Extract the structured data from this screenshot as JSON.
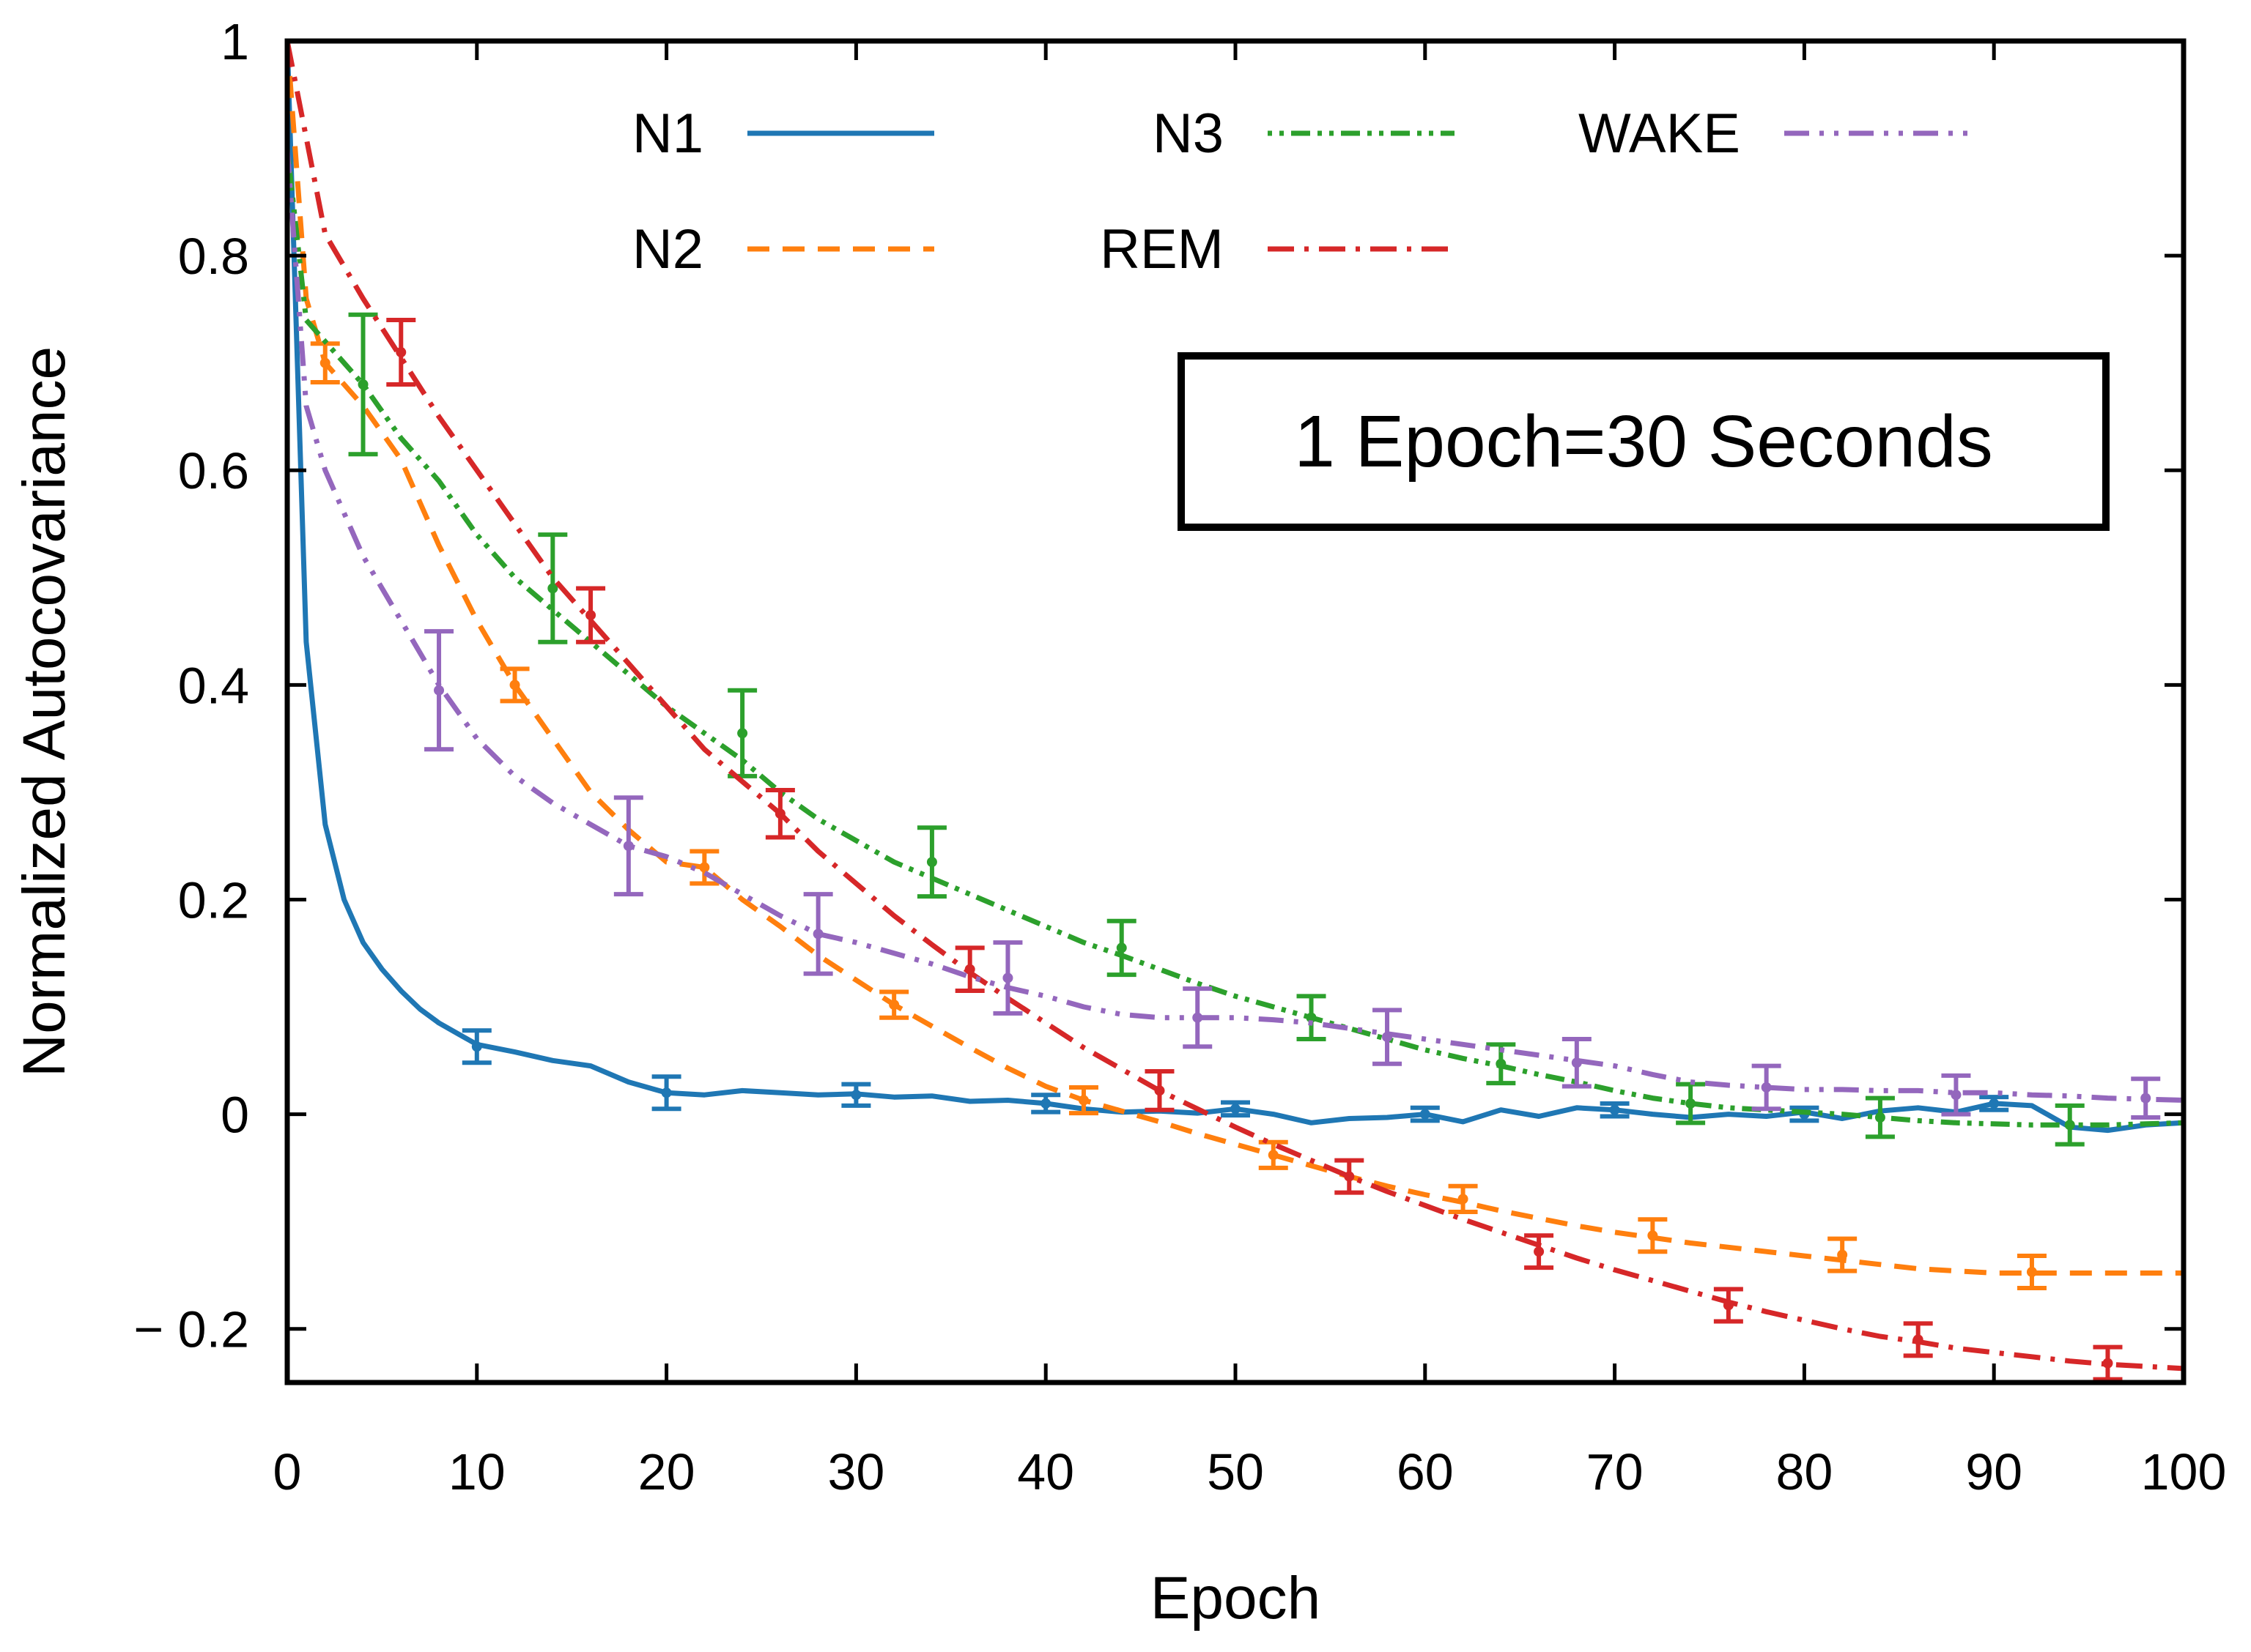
{
  "chart_data": {
    "type": "line",
    "title": "",
    "xlabel": "Epoch",
    "ylabel": "Normalized Autocovariance",
    "xlim": [
      0,
      100
    ],
    "ylim": [
      -0.25,
      1.0
    ],
    "xticks": [
      0,
      10,
      20,
      30,
      40,
      50,
      60,
      70,
      80,
      90,
      100
    ],
    "xtick_labels": [
      "0",
      "10",
      "20",
      "30",
      "40",
      "50",
      "60",
      "70",
      "80",
      "90",
      "100"
    ],
    "yticks": [
      -0.2,
      0,
      0.2,
      0.4,
      0.6,
      0.8,
      1.0
    ],
    "ytick_labels": [
      "− 0.2",
      "0",
      "0.2",
      "0.4",
      "0.6",
      "0.8",
      "1"
    ],
    "annotation": "1 Epoch=30 Seconds",
    "legend_position": "top",
    "series": [
      {
        "name": "N1",
        "color": "#1f77b4",
        "style": "solid",
        "x": [
          0,
          1,
          2,
          3,
          4,
          5,
          6,
          7,
          8,
          9,
          10,
          12,
          14,
          16,
          18,
          20,
          22,
          24,
          26,
          28,
          30,
          32,
          34,
          36,
          38,
          40,
          42,
          44,
          46,
          48,
          50,
          52,
          54,
          56,
          58,
          60,
          62,
          64,
          66,
          68,
          70,
          72,
          74,
          76,
          78,
          80,
          82,
          84,
          86,
          88,
          90,
          92,
          94,
          96,
          98,
          100
        ],
        "y": [
          1.0,
          0.44,
          0.27,
          0.2,
          0.16,
          0.135,
          0.115,
          0.098,
          0.085,
          0.075,
          0.065,
          0.058,
          0.05,
          0.045,
          0.03,
          0.02,
          0.018,
          0.022,
          0.02,
          0.018,
          0.019,
          0.016,
          0.017,
          0.012,
          0.013,
          0.01,
          0.005,
          0.002,
          0.003,
          0.001,
          0.005,
          0.0,
          -0.008,
          -0.004,
          -0.003,
          0.0,
          -0.007,
          0.004,
          -0.002,
          0.006,
          0.004,
          0.0,
          -0.003,
          0.0,
          -0.002,
          0.002,
          -0.004,
          0.003,
          0.006,
          0.002,
          0.01,
          0.008,
          -0.012,
          -0.015,
          -0.01,
          -0.008
        ],
        "error_x": [
          10,
          20,
          30,
          40,
          50,
          60,
          70,
          80,
          90
        ],
        "error_y": [
          0.063,
          0.02,
          0.018,
          0.01,
          0.005,
          0.0,
          0.004,
          0.0,
          0.01
        ],
        "error_e": [
          0.015,
          0.015,
          0.01,
          0.008,
          0.006,
          0.006,
          0.006,
          0.006,
          0.006
        ]
      },
      {
        "name": "N2",
        "color": "#ff7f0e",
        "style": "dashed",
        "x": [
          0,
          1,
          2,
          4,
          6,
          8,
          10,
          12,
          14,
          16,
          18,
          20,
          22,
          24,
          26,
          28,
          30,
          32,
          34,
          36,
          38,
          40,
          42,
          44,
          46,
          48,
          50,
          52,
          54,
          56,
          58,
          60,
          62,
          64,
          66,
          68,
          70,
          72,
          74,
          76,
          78,
          80,
          82,
          84,
          86,
          88,
          90,
          92,
          94,
          96,
          98,
          100
        ],
        "y": [
          1.0,
          0.76,
          0.7,
          0.66,
          0.61,
          0.53,
          0.46,
          0.4,
          0.35,
          0.3,
          0.265,
          0.235,
          0.23,
          0.2,
          0.175,
          0.148,
          0.125,
          0.102,
          0.082,
          0.062,
          0.043,
          0.026,
          0.013,
          0.003,
          -0.007,
          -0.018,
          -0.028,
          -0.038,
          -0.048,
          -0.058,
          -0.067,
          -0.075,
          -0.082,
          -0.09,
          -0.097,
          -0.104,
          -0.11,
          -0.115,
          -0.12,
          -0.124,
          -0.128,
          -0.132,
          -0.136,
          -0.14,
          -0.144,
          -0.146,
          -0.148,
          -0.148,
          -0.148,
          -0.148,
          -0.148,
          -0.148
        ],
        "error_x": [
          2,
          12,
          22,
          32,
          42,
          52,
          62,
          72,
          82,
          92
        ],
        "error_y": [
          0.7,
          0.4,
          0.23,
          0.102,
          0.013,
          -0.038,
          -0.079,
          -0.113,
          -0.131,
          -0.147
        ],
        "error_e": [
          0.018,
          0.015,
          0.015,
          0.012,
          0.012,
          0.012,
          0.012,
          0.015,
          0.015,
          0.015
        ]
      },
      {
        "name": "N3",
        "color": "#2ca02c",
        "style": "dotdotdash",
        "x": [
          0,
          1,
          2,
          4,
          6,
          8,
          10,
          12,
          14,
          16,
          18,
          20,
          22,
          24,
          26,
          28,
          30,
          32,
          34,
          36,
          38,
          40,
          42,
          44,
          46,
          48,
          50,
          52,
          54,
          56,
          58,
          60,
          62,
          64,
          66,
          68,
          70,
          72,
          74,
          76,
          78,
          80,
          82,
          84,
          86,
          88,
          90,
          92,
          94,
          96,
          98,
          100
        ],
        "y": [
          0.9,
          0.74,
          0.72,
          0.68,
          0.63,
          0.59,
          0.54,
          0.5,
          0.47,
          0.44,
          0.41,
          0.38,
          0.355,
          0.33,
          0.3,
          0.275,
          0.255,
          0.235,
          0.22,
          0.205,
          0.19,
          0.175,
          0.16,
          0.148,
          0.135,
          0.122,
          0.11,
          0.1,
          0.09,
          0.08,
          0.07,
          0.06,
          0.052,
          0.045,
          0.037,
          0.03,
          0.022,
          0.015,
          0.01,
          0.006,
          0.004,
          0.002,
          0.0,
          -0.003,
          -0.006,
          -0.008,
          -0.009,
          -0.01,
          -0.01,
          -0.01,
          -0.009,
          -0.008
        ],
        "error_x": [
          4,
          14,
          24,
          34,
          44,
          54,
          64,
          74,
          84,
          94
        ],
        "error_y": [
          0.68,
          0.49,
          0.355,
          0.235,
          0.155,
          0.09,
          0.047,
          0.01,
          -0.003,
          -0.01
        ],
        "error_e": [
          0.065,
          0.05,
          0.04,
          0.032,
          0.025,
          0.02,
          0.018,
          0.018,
          0.018,
          0.018
        ]
      },
      {
        "name": "REM",
        "color": "#d62728",
        "style": "dashdot",
        "x": [
          0,
          2,
          4,
          6,
          8,
          10,
          12,
          14,
          16,
          18,
          20,
          22,
          24,
          26,
          28,
          30,
          32,
          34,
          36,
          38,
          40,
          42,
          44,
          46,
          48,
          50,
          52,
          54,
          56,
          58,
          60,
          62,
          64,
          66,
          68,
          70,
          72,
          74,
          76,
          78,
          80,
          82,
          84,
          86,
          88,
          90,
          92,
          94,
          96,
          98,
          100
        ],
        "y": [
          1.0,
          0.82,
          0.76,
          0.705,
          0.65,
          0.6,
          0.55,
          0.5,
          0.46,
          0.42,
          0.38,
          0.34,
          0.31,
          0.28,
          0.245,
          0.215,
          0.185,
          0.158,
          0.132,
          0.108,
          0.085,
          0.062,
          0.042,
          0.022,
          0.005,
          -0.012,
          -0.028,
          -0.043,
          -0.058,
          -0.072,
          -0.085,
          -0.098,
          -0.11,
          -0.122,
          -0.134,
          -0.145,
          -0.155,
          -0.165,
          -0.175,
          -0.184,
          -0.192,
          -0.2,
          -0.207,
          -0.212,
          -0.218,
          -0.222,
          -0.226,
          -0.23,
          -0.233,
          -0.235,
          -0.237
        ],
        "error_x": [
          6,
          16,
          26,
          36,
          46,
          56,
          66,
          76,
          86,
          96
        ],
        "error_y": [
          0.71,
          0.465,
          0.28,
          0.135,
          0.022,
          -0.058,
          -0.128,
          -0.178,
          -0.21,
          -0.232
        ],
        "error_e": [
          0.03,
          0.025,
          0.022,
          0.02,
          0.018,
          0.015,
          0.015,
          0.015,
          0.015,
          0.015
        ]
      },
      {
        "name": "WAKE",
        "color": "#9467bd",
        "style": "dashdotdot",
        "x": [
          0,
          1,
          2,
          4,
          6,
          8,
          10,
          12,
          14,
          16,
          18,
          20,
          22,
          24,
          26,
          28,
          30,
          32,
          34,
          36,
          38,
          40,
          42,
          44,
          46,
          48,
          50,
          52,
          54,
          56,
          58,
          60,
          62,
          64,
          66,
          68,
          70,
          72,
          74,
          76,
          78,
          80,
          82,
          84,
          86,
          88,
          90,
          92,
          94,
          96,
          98,
          100
        ],
        "y": [
          0.9,
          0.66,
          0.6,
          0.52,
          0.46,
          0.4,
          0.35,
          0.315,
          0.29,
          0.27,
          0.25,
          0.24,
          0.225,
          0.205,
          0.185,
          0.168,
          0.16,
          0.15,
          0.14,
          0.128,
          0.118,
          0.11,
          0.1,
          0.093,
          0.09,
          0.09,
          0.09,
          0.088,
          0.085,
          0.08,
          0.075,
          0.07,
          0.065,
          0.06,
          0.055,
          0.05,
          0.045,
          0.037,
          0.03,
          0.027,
          0.025,
          0.023,
          0.023,
          0.022,
          0.022,
          0.02,
          0.02,
          0.018,
          0.017,
          0.015,
          0.014,
          0.013
        ],
        "error_x": [
          8,
          18,
          28,
          38,
          48,
          58,
          68,
          78,
          88,
          98
        ],
        "error_y": [
          0.395,
          0.25,
          0.168,
          0.127,
          0.09,
          0.072,
          0.048,
          0.025,
          0.018,
          0.015
        ],
        "error_e": [
          0.055,
          0.045,
          0.037,
          0.033,
          0.027,
          0.025,
          0.022,
          0.02,
          0.018,
          0.018
        ]
      }
    ]
  }
}
